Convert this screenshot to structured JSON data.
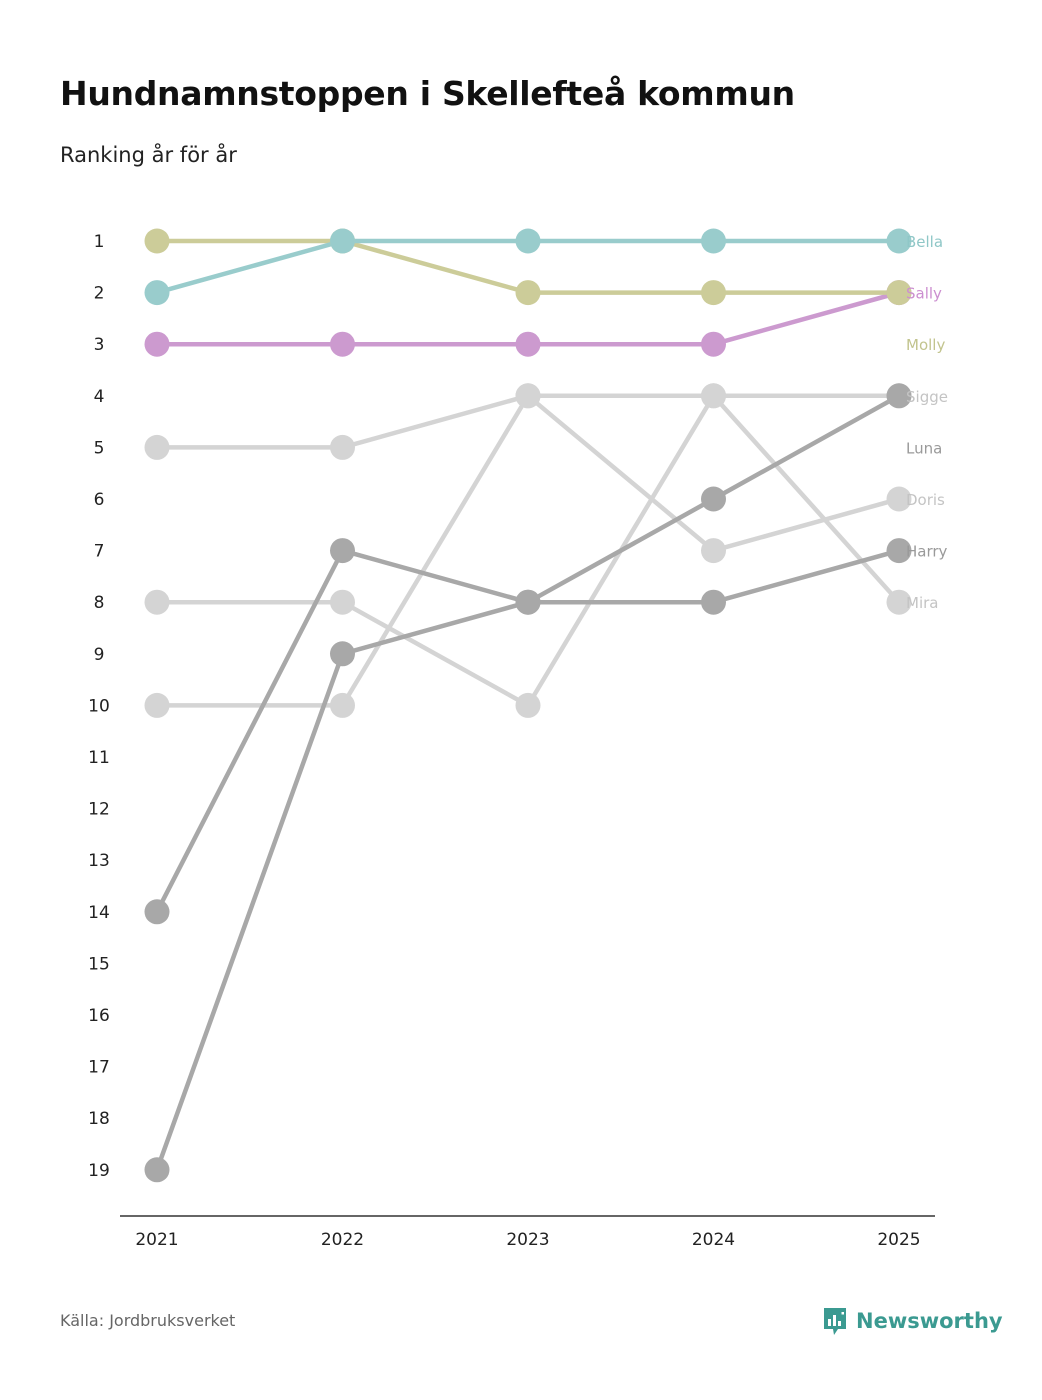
{
  "title": "Hundnamnstoppen i Skellefteå kommun",
  "subtitle": "Ranking år för år",
  "footer": {
    "source": "Källa: Jordbruksverket",
    "brand": "Newsworthy",
    "brand_icon": "newsworthy-logo-icon"
  },
  "colors": {
    "brand": "#3b9a91",
    "axis": "#333333"
  },
  "chart_data": {
    "type": "line",
    "title": "Hundnamnstoppen i Skellefteå kommun",
    "subtitle": "Ranking år för år",
    "x": [
      "2021",
      "2022",
      "2023",
      "2024",
      "2025"
    ],
    "ylim": [
      1,
      19
    ],
    "y_inverted": true,
    "y_ticks": [
      "1",
      "2",
      "3",
      "4",
      "5",
      "6",
      "7",
      "8",
      "9",
      "10",
      "11",
      "12",
      "13",
      "14",
      "15",
      "16",
      "17",
      "18",
      "19"
    ],
    "series": [
      {
        "name": "Doris",
        "values": [
          10,
          10,
          4,
          7,
          6
        ],
        "color": "#d4d4d4",
        "label_color": "#c4c4c4"
      },
      {
        "name": "Mira",
        "values": [
          8,
          8,
          10,
          4,
          8
        ],
        "color": "#d4d4d4",
        "label_color": "#c4c4c4"
      },
      {
        "name": "Sigge",
        "values": [
          5,
          5,
          4,
          4,
          4
        ],
        "color": "#d4d4d4",
        "label_color": "#c4c4c4"
      },
      {
        "name": "Harry",
        "values": [
          14,
          7,
          8,
          8,
          7
        ],
        "color": "#a8a8a8",
        "label_color": "#9a9a9a"
      },
      {
        "name": "Luna",
        "values": [
          19,
          9,
          8,
          6,
          4
        ],
        "color": "#a8a8a8",
        "label_color": "#9a9a9a"
      },
      {
        "name": "Sally",
        "values": [
          3,
          3,
          3,
          3,
          2
        ],
        "color": "#cc9acf",
        "label_color": "#cc8fd0"
      },
      {
        "name": "Molly",
        "values": [
          1,
          1,
          2,
          2,
          2
        ],
        "color": "#cccc99",
        "label_color": "#c2c48e"
      },
      {
        "name": "Bella",
        "values": [
          2,
          1,
          1,
          1,
          1
        ],
        "color": "#99cccc",
        "label_color": "#8fc7c7"
      }
    ],
    "label_order": [
      "Bella",
      "Sally",
      "Molly",
      "Sigge",
      "Luna",
      "Doris",
      "Harry",
      "Mira"
    ]
  }
}
